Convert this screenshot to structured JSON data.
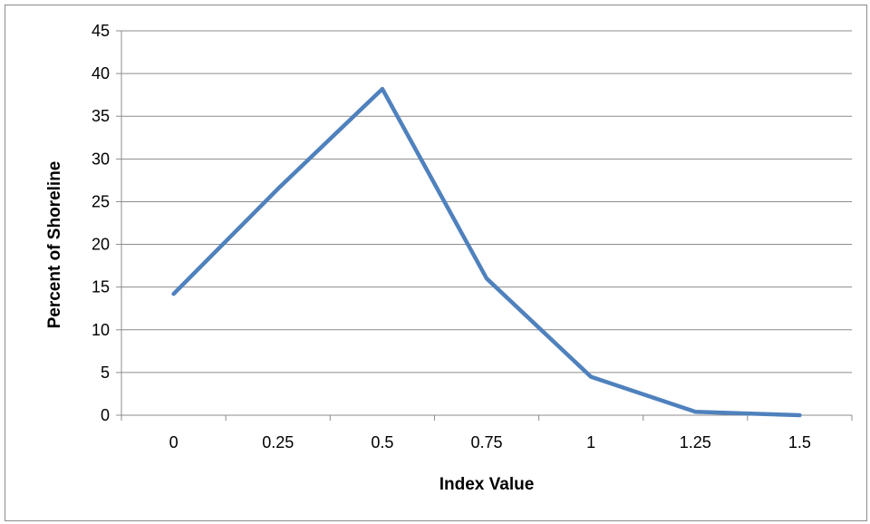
{
  "chart_data": {
    "type": "line",
    "categories": [
      "0",
      "0.25",
      "0.5",
      "0.75",
      "1",
      "1.25",
      "1.5"
    ],
    "series": [
      {
        "values": [
          14.2,
          26.5,
          38.2,
          16.0,
          4.5,
          0.4,
          0.0
        ],
        "color": "#4f81bd"
      }
    ],
    "title": "",
    "xlabel": "Index Value",
    "ylabel": "Percent of Shoreline",
    "ylim": [
      0,
      45
    ],
    "yticks": [
      "0",
      "5",
      "10",
      "15",
      "20",
      "25",
      "30",
      "35",
      "40",
      "45"
    ],
    "grid": true,
    "legend": "none",
    "gridline_color": "#8c8c8c"
  }
}
